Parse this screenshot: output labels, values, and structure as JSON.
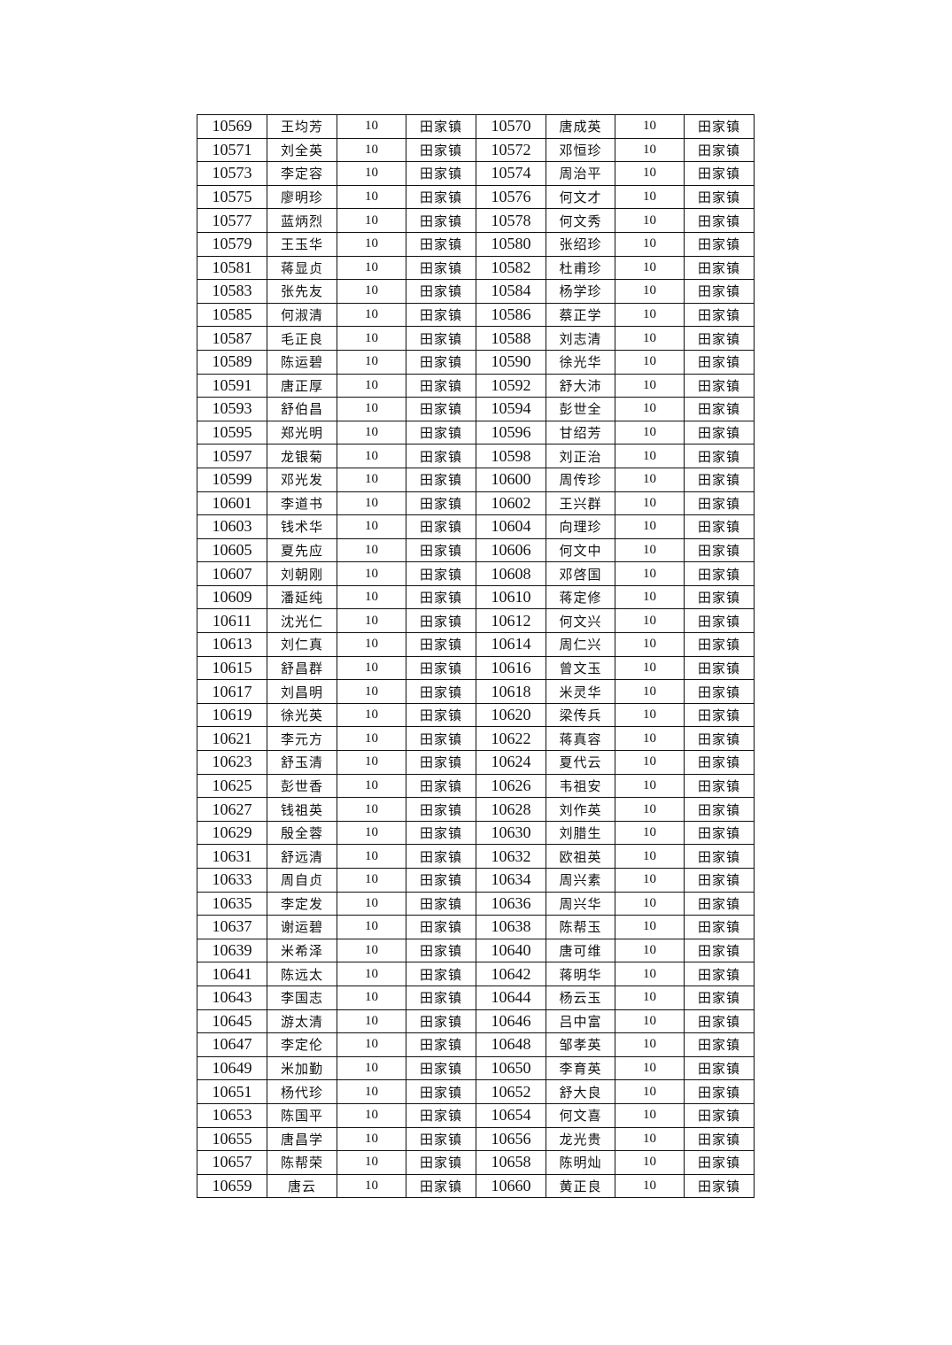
{
  "table": {
    "rows": [
      [
        "10569",
        "王均芳",
        "10",
        "田家镇",
        "10570",
        "唐成英",
        "10",
        "田家镇"
      ],
      [
        "10571",
        "刘全英",
        "10",
        "田家镇",
        "10572",
        "邓恒珍",
        "10",
        "田家镇"
      ],
      [
        "10573",
        "李定容",
        "10",
        "田家镇",
        "10574",
        "周治平",
        "10",
        "田家镇"
      ],
      [
        "10575",
        "廖明珍",
        "10",
        "田家镇",
        "10576",
        "何文才",
        "10",
        "田家镇"
      ],
      [
        "10577",
        "蓝炳烈",
        "10",
        "田家镇",
        "10578",
        "何文秀",
        "10",
        "田家镇"
      ],
      [
        "10579",
        "王玉华",
        "10",
        "田家镇",
        "10580",
        "张绍珍",
        "10",
        "田家镇"
      ],
      [
        "10581",
        "蒋显贞",
        "10",
        "田家镇",
        "10582",
        "杜甫珍",
        "10",
        "田家镇"
      ],
      [
        "10583",
        "张先友",
        "10",
        "田家镇",
        "10584",
        "杨学珍",
        "10",
        "田家镇"
      ],
      [
        "10585",
        "何淑清",
        "10",
        "田家镇",
        "10586",
        "蔡正学",
        "10",
        "田家镇"
      ],
      [
        "10587",
        "毛正良",
        "10",
        "田家镇",
        "10588",
        "刘志清",
        "10",
        "田家镇"
      ],
      [
        "10589",
        "陈运碧",
        "10",
        "田家镇",
        "10590",
        "徐光华",
        "10",
        "田家镇"
      ],
      [
        "10591",
        "唐正厚",
        "10",
        "田家镇",
        "10592",
        "舒大沛",
        "10",
        "田家镇"
      ],
      [
        "10593",
        "舒伯昌",
        "10",
        "田家镇",
        "10594",
        "彭世全",
        "10",
        "田家镇"
      ],
      [
        "10595",
        "郑光明",
        "10",
        "田家镇",
        "10596",
        "甘绍芳",
        "10",
        "田家镇"
      ],
      [
        "10597",
        "龙银菊",
        "10",
        "田家镇",
        "10598",
        "刘正治",
        "10",
        "田家镇"
      ],
      [
        "10599",
        "邓光发",
        "10",
        "田家镇",
        "10600",
        "周传珍",
        "10",
        "田家镇"
      ],
      [
        "10601",
        "李道书",
        "10",
        "田家镇",
        "10602",
        "王兴群",
        "10",
        "田家镇"
      ],
      [
        "10603",
        "钱术华",
        "10",
        "田家镇",
        "10604",
        "向理珍",
        "10",
        "田家镇"
      ],
      [
        "10605",
        "夏先应",
        "10",
        "田家镇",
        "10606",
        "何文中",
        "10",
        "田家镇"
      ],
      [
        "10607",
        "刘朝刚",
        "10",
        "田家镇",
        "10608",
        "邓啓国",
        "10",
        "田家镇"
      ],
      [
        "10609",
        "潘延纯",
        "10",
        "田家镇",
        "10610",
        "蒋定修",
        "10",
        "田家镇"
      ],
      [
        "10611",
        "沈光仁",
        "10",
        "田家镇",
        "10612",
        "何文兴",
        "10",
        "田家镇"
      ],
      [
        "10613",
        "刘仁真",
        "10",
        "田家镇",
        "10614",
        "周仁兴",
        "10",
        "田家镇"
      ],
      [
        "10615",
        "舒昌群",
        "10",
        "田家镇",
        "10616",
        "曾文玉",
        "10",
        "田家镇"
      ],
      [
        "10617",
        "刘昌明",
        "10",
        "田家镇",
        "10618",
        "米灵华",
        "10",
        "田家镇"
      ],
      [
        "10619",
        "徐光英",
        "10",
        "田家镇",
        "10620",
        "梁传兵",
        "10",
        "田家镇"
      ],
      [
        "10621",
        "李元方",
        "10",
        "田家镇",
        "10622",
        "蒋真容",
        "10",
        "田家镇"
      ],
      [
        "10623",
        "舒玉清",
        "10",
        "田家镇",
        "10624",
        "夏代云",
        "10",
        "田家镇"
      ],
      [
        "10625",
        "彭世香",
        "10",
        "田家镇",
        "10626",
        "韦祖安",
        "10",
        "田家镇"
      ],
      [
        "10627",
        "钱祖英",
        "10",
        "田家镇",
        "10628",
        "刘作英",
        "10",
        "田家镇"
      ],
      [
        "10629",
        "殷全蓉",
        "10",
        "田家镇",
        "10630",
        "刘腊生",
        "10",
        "田家镇"
      ],
      [
        "10631",
        "舒远清",
        "10",
        "田家镇",
        "10632",
        "欧祖英",
        "10",
        "田家镇"
      ],
      [
        "10633",
        "周自贞",
        "10",
        "田家镇",
        "10634",
        "周兴素",
        "10",
        "田家镇"
      ],
      [
        "10635",
        "李定发",
        "10",
        "田家镇",
        "10636",
        "周兴华",
        "10",
        "田家镇"
      ],
      [
        "10637",
        "谢运碧",
        "10",
        "田家镇",
        "10638",
        "陈帮玉",
        "10",
        "田家镇"
      ],
      [
        "10639",
        "米希泽",
        "10",
        "田家镇",
        "10640",
        "唐可维",
        "10",
        "田家镇"
      ],
      [
        "10641",
        "陈远太",
        "10",
        "田家镇",
        "10642",
        "蒋明华",
        "10",
        "田家镇"
      ],
      [
        "10643",
        "李国志",
        "10",
        "田家镇",
        "10644",
        "杨云玉",
        "10",
        "田家镇"
      ],
      [
        "10645",
        "游太清",
        "10",
        "田家镇",
        "10646",
        "吕中富",
        "10",
        "田家镇"
      ],
      [
        "10647",
        "李定伦",
        "10",
        "田家镇",
        "10648",
        "邹孝英",
        "10",
        "田家镇"
      ],
      [
        "10649",
        "米加勤",
        "10",
        "田家镇",
        "10650",
        "李育英",
        "10",
        "田家镇"
      ],
      [
        "10651",
        "杨代珍",
        "10",
        "田家镇",
        "10652",
        "舒大良",
        "10",
        "田家镇"
      ],
      [
        "10653",
        "陈国平",
        "10",
        "田家镇",
        "10654",
        "何文喜",
        "10",
        "田家镇"
      ],
      [
        "10655",
        "唐昌学",
        "10",
        "田家镇",
        "10656",
        "龙光贵",
        "10",
        "田家镇"
      ],
      [
        "10657",
        "陈帮荣",
        "10",
        "田家镇",
        "10658",
        "陈明灿",
        "10",
        "田家镇"
      ],
      [
        "10659",
        "唐云",
        "10",
        "田家镇",
        "10660",
        "黄正良",
        "10",
        "田家镇"
      ]
    ]
  }
}
